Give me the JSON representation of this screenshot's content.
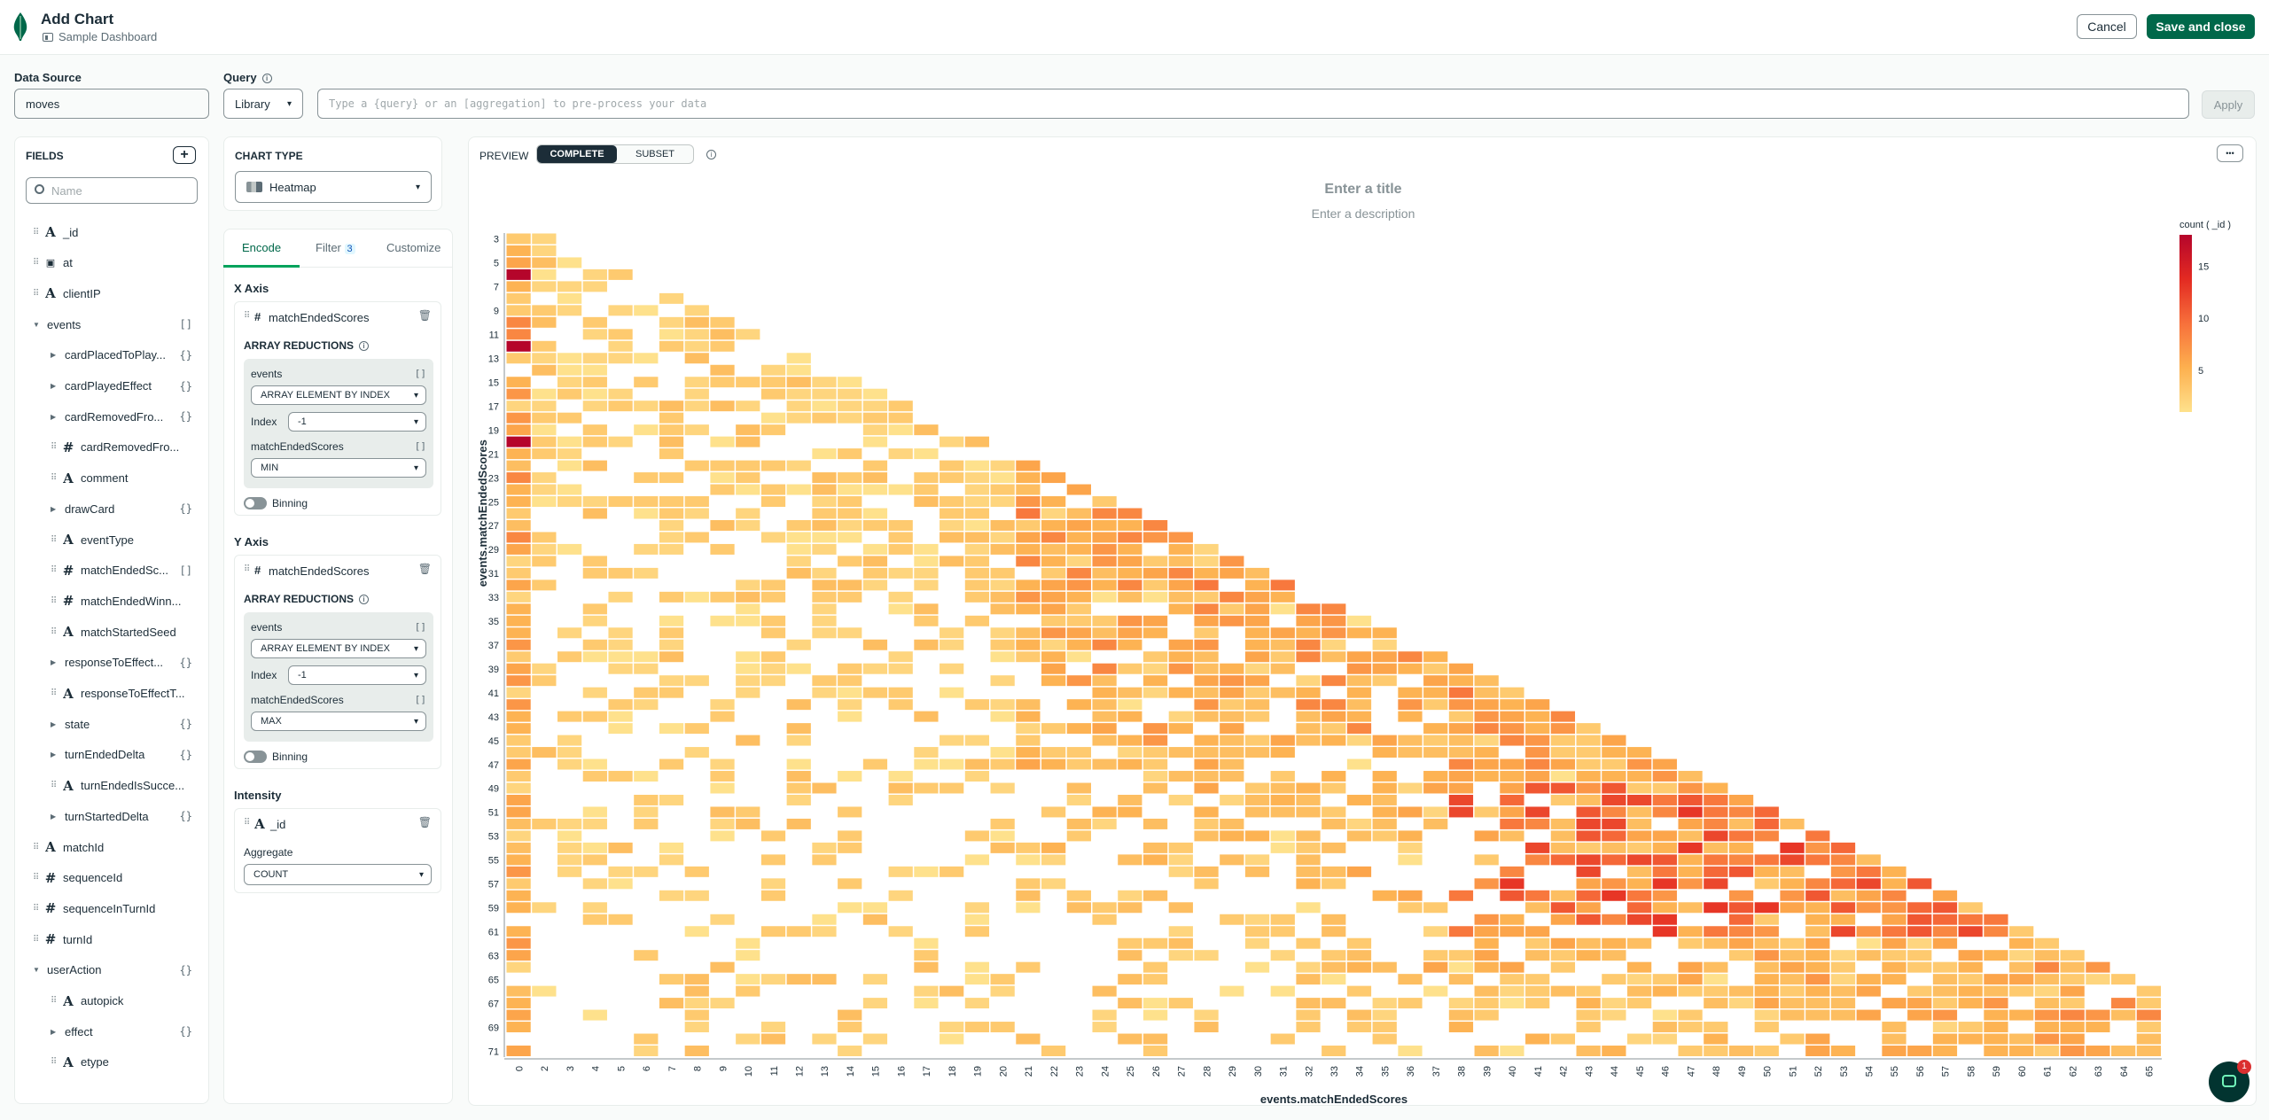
{
  "header": {
    "title": "Add Chart",
    "dashboard": "Sample Dashboard",
    "cancel": "Cancel",
    "save": "Save and close"
  },
  "data_source": {
    "label": "Data Source",
    "value": "moves"
  },
  "query": {
    "label": "Query",
    "mode": "Library",
    "placeholder": "Type a {query} or an [aggregation] to pre-process your data",
    "apply": "Apply"
  },
  "fields": {
    "title": "FIELDS",
    "search_placeholder": "Name",
    "items": [
      {
        "name": "_id",
        "type": "A",
        "level": 0
      },
      {
        "name": "at",
        "type": "date",
        "level": 0
      },
      {
        "name": "clientIP",
        "type": "A",
        "level": 0
      },
      {
        "name": "events",
        "type": "arr",
        "level": 0,
        "badge": "[]"
      },
      {
        "name": "cardPlacedToPlay...",
        "type": "obj",
        "level": 1,
        "badge": "{}"
      },
      {
        "name": "cardPlayedEffect",
        "type": "obj",
        "level": 1,
        "badge": "{}"
      },
      {
        "name": "cardRemovedFro...",
        "type": "obj",
        "level": 1,
        "badge": "{}"
      },
      {
        "name": "cardRemovedFro...",
        "type": "#",
        "level": 1
      },
      {
        "name": "comment",
        "type": "A",
        "level": 1
      },
      {
        "name": "drawCard",
        "type": "obj",
        "level": 1,
        "badge": "{}"
      },
      {
        "name": "eventType",
        "type": "A",
        "level": 1
      },
      {
        "name": "matchEndedSc...",
        "type": "#",
        "level": 1,
        "badge": "[]"
      },
      {
        "name": "matchEndedWinn...",
        "type": "#",
        "level": 1
      },
      {
        "name": "matchStartedSeed",
        "type": "A",
        "level": 1
      },
      {
        "name": "responseToEffect...",
        "type": "obj",
        "level": 1,
        "badge": "{}"
      },
      {
        "name": "responseToEffectT...",
        "type": "A",
        "level": 1
      },
      {
        "name": "state",
        "type": "obj",
        "level": 1,
        "badge": "{}"
      },
      {
        "name": "turnEndedDelta",
        "type": "obj",
        "level": 1,
        "badge": "{}"
      },
      {
        "name": "turnEndedIsSucce...",
        "type": "A",
        "level": 1
      },
      {
        "name": "turnStartedDelta",
        "type": "obj",
        "level": 1,
        "badge": "{}"
      },
      {
        "name": "matchId",
        "type": "A",
        "level": 0
      },
      {
        "name": "sequenceId",
        "type": "#",
        "level": 0
      },
      {
        "name": "sequenceInTurnId",
        "type": "#",
        "level": 0
      },
      {
        "name": "turnId",
        "type": "#",
        "level": 0
      },
      {
        "name": "userAction",
        "type": "arr",
        "level": 0,
        "badge": "{}"
      },
      {
        "name": "autopick",
        "type": "A",
        "level": 1
      },
      {
        "name": "effect",
        "type": "obj",
        "level": 1,
        "badge": "{}"
      },
      {
        "name": "etype",
        "type": "A",
        "level": 1
      }
    ]
  },
  "chart_type": {
    "label": "CHART TYPE",
    "value": "Heatmap"
  },
  "encode_tabs": {
    "encode": "Encode",
    "filter": "Filter",
    "filter_count": "3",
    "customize": "Customize"
  },
  "x_axis": {
    "label": "X Axis",
    "field": "matchEndedScores",
    "reductions": "ARRAY REDUCTIONS",
    "events": "events",
    "events_badge": "[]",
    "events_method": "ARRAY ELEMENT BY INDEX",
    "index_label": "Index",
    "index_value": "-1",
    "scores": "matchEndedScores",
    "scores_badge": "[]",
    "scores_method": "MIN",
    "binning": "Binning"
  },
  "y_axis": {
    "label": "Y Axis",
    "field": "matchEndedScores",
    "reductions": "ARRAY REDUCTIONS",
    "events": "events",
    "events_badge": "[]",
    "events_method": "ARRAY ELEMENT BY INDEX",
    "index_label": "Index",
    "index_value": "-1",
    "scores": "matchEndedScores",
    "scores_badge": "[]",
    "scores_method": "MAX",
    "binning": "Binning"
  },
  "intensity": {
    "label": "Intensity",
    "field": "_id",
    "aggregate_label": "Aggregate",
    "aggregate": "COUNT"
  },
  "preview": {
    "label": "PREVIEW",
    "complete": "COMPLETE",
    "subset": "SUBSET",
    "more": "•••",
    "title_placeholder": "Enter a title",
    "desc_placeholder": "Enter a description"
  },
  "notif_count": "1",
  "chart_data": {
    "type": "heatmap",
    "xlabel": "events.matchEndedScores",
    "ylabel": "events.matchEndedScores",
    "x_range": [
      0,
      65
    ],
    "y_range": [
      3,
      71
    ],
    "x_ticks": [
      "0",
      "2",
      "3",
      "4",
      "5",
      "6",
      "7",
      "8",
      "9",
      "10",
      "11",
      "12",
      "13",
      "14",
      "15",
      "16",
      "17",
      "18",
      "19",
      "20",
      "21",
      "22",
      "23",
      "24",
      "25",
      "26",
      "27",
      "28",
      "29",
      "30",
      "31",
      "32",
      "33",
      "34",
      "35",
      "36",
      "37",
      "38",
      "39",
      "40",
      "41",
      "42",
      "43",
      "44",
      "45",
      "46",
      "47",
      "48",
      "49",
      "50",
      "51",
      "52",
      "53",
      "54",
      "55",
      "56",
      "57",
      "58",
      "59",
      "60",
      "61",
      "62",
      "63",
      "64",
      "65"
    ],
    "y_ticks": [
      "3",
      "5",
      "7",
      "9",
      "11",
      "13",
      "15",
      "17",
      "19",
      "21",
      "23",
      "25",
      "27",
      "29",
      "31",
      "33",
      "35",
      "37",
      "39",
      "41",
      "43",
      "45",
      "47",
      "49",
      "51",
      "53",
      "55",
      "57",
      "59",
      "61",
      "63",
      "65",
      "67",
      "69",
      "71"
    ],
    "legend_title": "count ( _id )",
    "legend_ticks": [
      "15",
      "10",
      "5"
    ],
    "value_range": [
      1,
      18
    ],
    "legend_position": "right",
    "colors": [
      "#fee18c",
      "#fdb04f",
      "#f7703b",
      "#e32a22",
      "#b5052b"
    ],
    "note": "cells cover region where y >= x; counts increase toward the diagonal, with highest concentrations near x=42..56, y=51..61 and along x=0"
  }
}
